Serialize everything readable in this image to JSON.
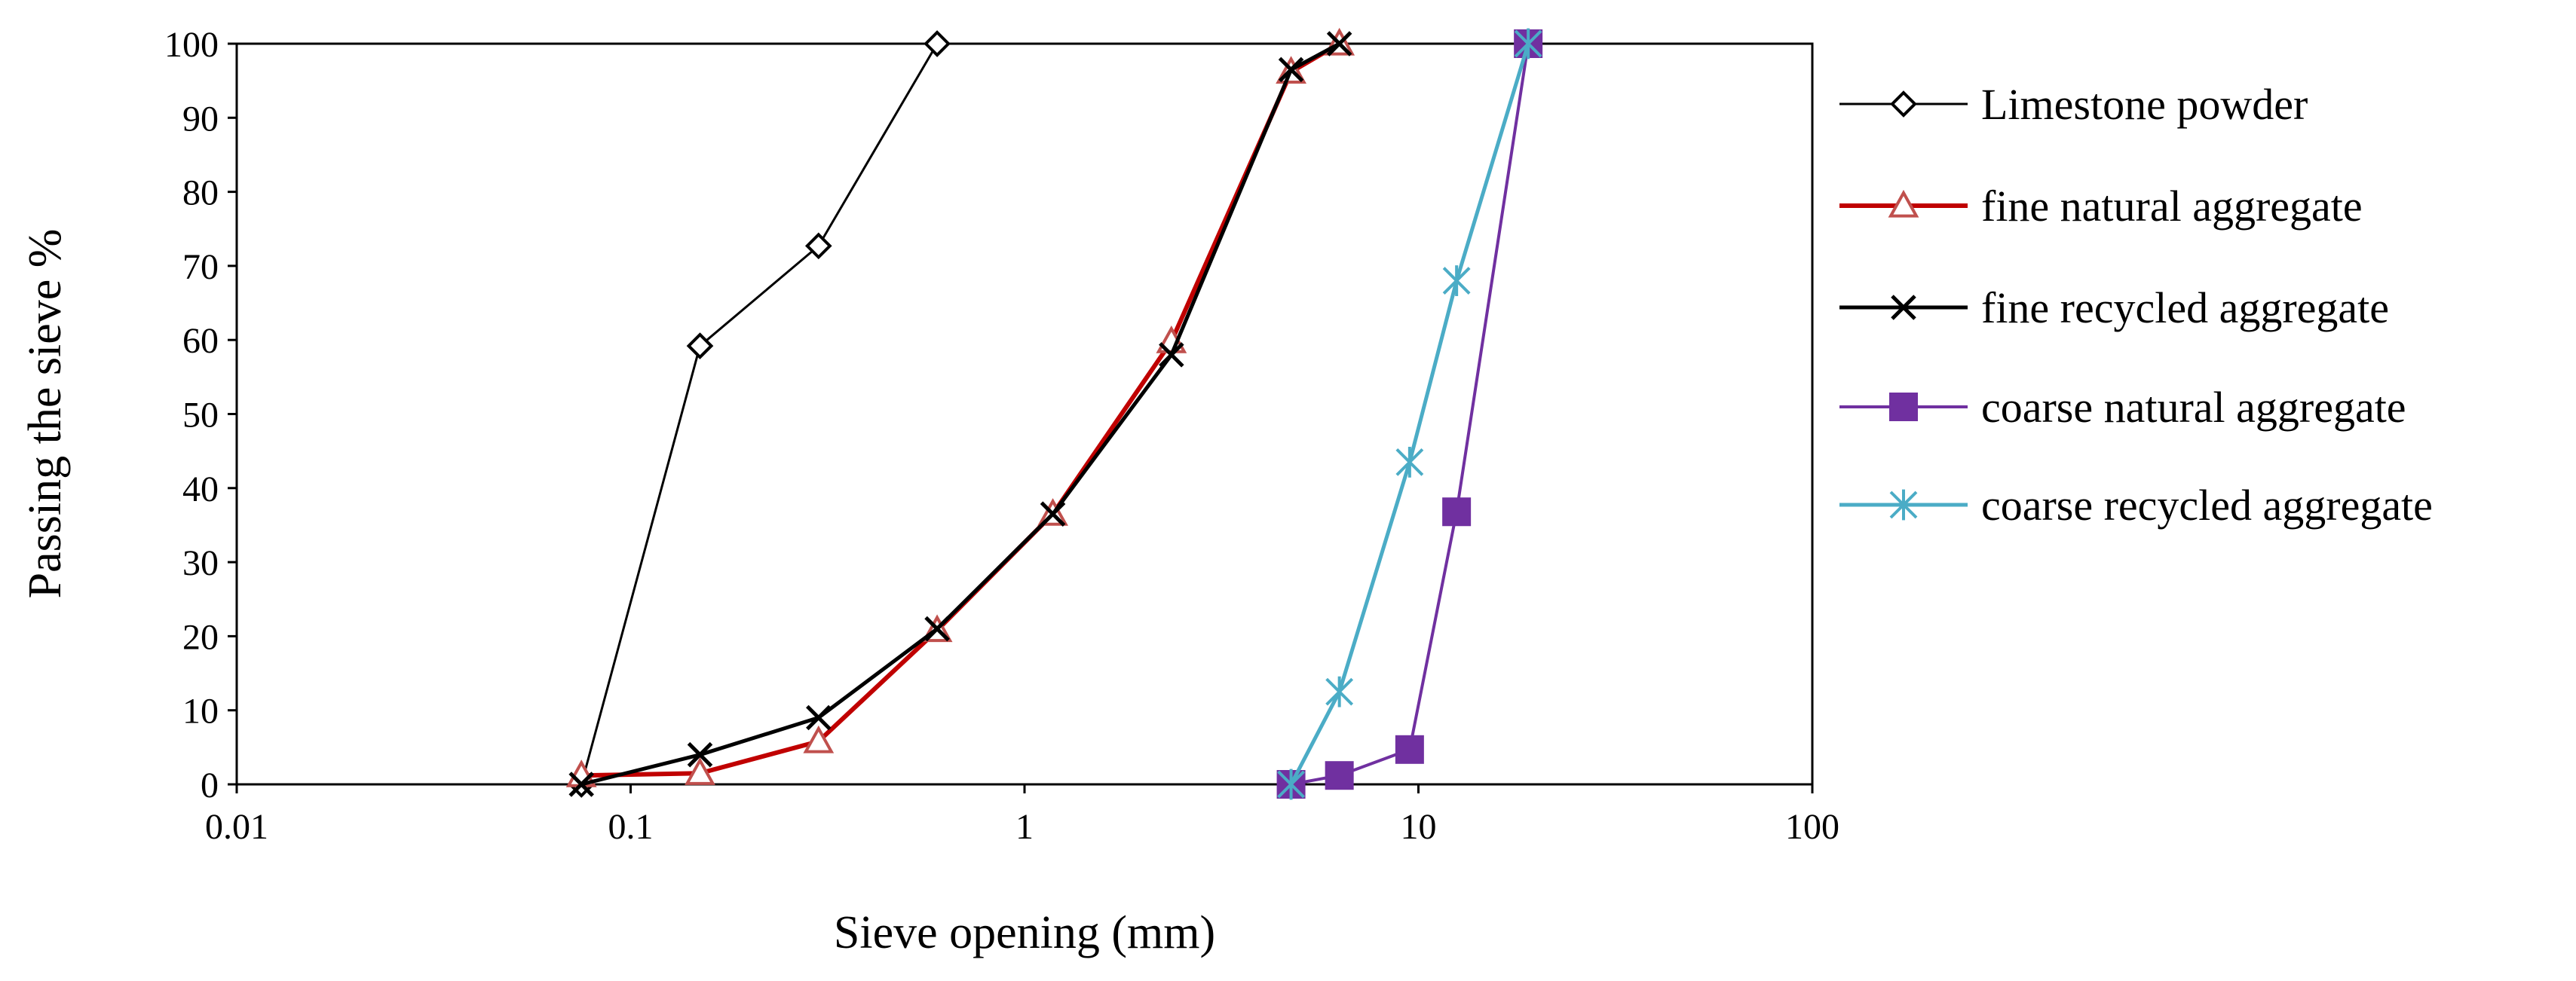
{
  "chart_data": {
    "type": "scatter",
    "title": "",
    "xlabel": "Sieve opening (mm)",
    "ylabel": "Passing the sieve %",
    "x_scale": "log",
    "xlim": [
      0.01,
      100
    ],
    "ylim": [
      0,
      100
    ],
    "x_ticks": [
      0.01,
      0.1,
      1,
      10,
      100
    ],
    "x_tick_labels": [
      "0.01",
      "0.1",
      "1",
      "10",
      "100"
    ],
    "y_ticks": [
      0,
      10,
      20,
      30,
      40,
      50,
      60,
      70,
      80,
      90,
      100
    ],
    "y_tick_labels": [
      "0",
      "10",
      "20",
      "30",
      "40",
      "50",
      "60",
      "70",
      "80",
      "90",
      "100"
    ],
    "grid": false,
    "legend_position": "right",
    "series": [
      {
        "name": "Limestone powder",
        "color": "#000000",
        "marker": "diamond-open",
        "x": [
          0.075,
          0.15,
          0.3,
          0.6
        ],
        "y": [
          0,
          59.2,
          72.7,
          100
        ]
      },
      {
        "name": "fine natural aggregate",
        "color": "#c00000",
        "marker": "triangle-open",
        "x": [
          0.075,
          0.15,
          0.3,
          0.6,
          1.18,
          2.36,
          4.75,
          6.3
        ],
        "y": [
          1.2,
          1.5,
          5.8,
          20.8,
          36.5,
          59.8,
          96.2,
          100
        ]
      },
      {
        "name": "fine recycled aggregate",
        "color": "#000000",
        "marker": "x",
        "x": [
          0.075,
          0.15,
          0.3,
          0.6,
          1.18,
          2.36,
          4.75,
          6.3
        ],
        "y": [
          0,
          4,
          9,
          21,
          36.5,
          58,
          96.5,
          100
        ]
      },
      {
        "name": "coarse natural aggregate",
        "color": "#7030a0",
        "marker": "square-filled",
        "x": [
          4.75,
          6.3,
          9.5,
          12.5,
          19
        ],
        "y": [
          0,
          1.2,
          4.7,
          36.8,
          100
        ]
      },
      {
        "name": "coarse recycled aggregate",
        "color": "#4bacc6",
        "marker": "asterisk",
        "x": [
          4.75,
          6.3,
          9.5,
          12.5,
          19
        ],
        "y": [
          0,
          12.5,
          43.5,
          68,
          100
        ]
      }
    ]
  }
}
